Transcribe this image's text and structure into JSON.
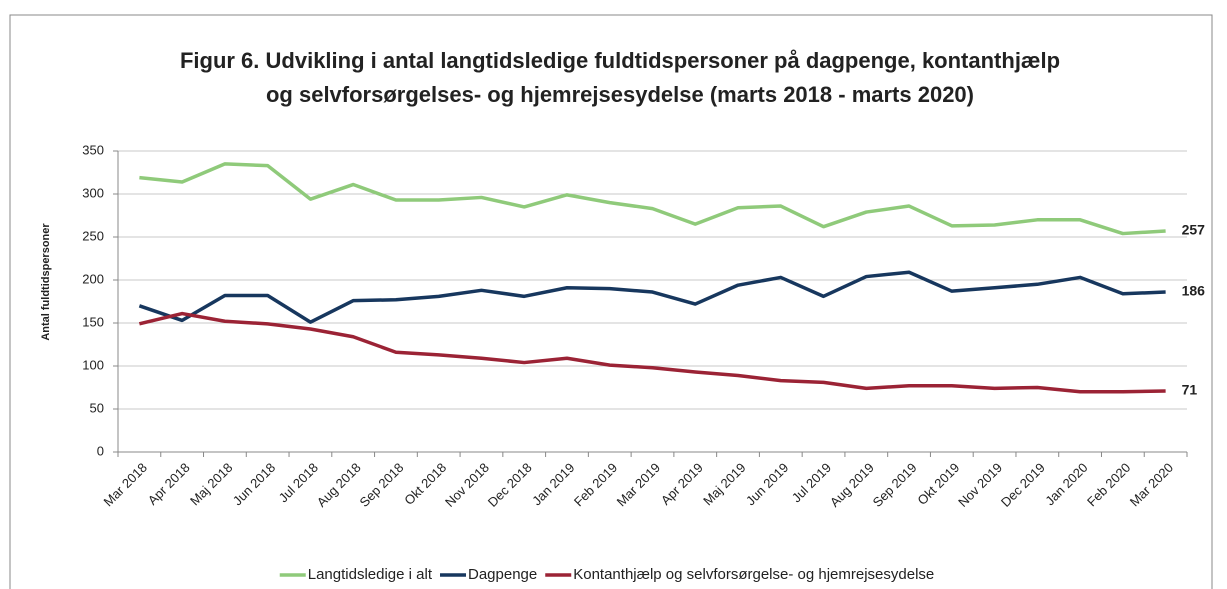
{
  "chart_data": {
    "type": "line",
    "title": [
      "Figur 6. Udvikling i antal langtidsledige fuldtidspersoner på dagpenge,  kontanthjælp",
      "og selvforsørgelses- og hjemrejsesydelse (marts 2018 - marts 2020)"
    ],
    "y_label": "Antal fuldtidspersoner",
    "categories": [
      "Mar 2018",
      "Apr 2018",
      "Maj 2018",
      "Jun 2018",
      "Jul 2018",
      "Aug 2018",
      "Sep 2018",
      "Okt 2018",
      "Nov 2018",
      "Dec 2018",
      "Jan 2019",
      "Feb 2019",
      "Mar 2019",
      "Apr 2019",
      "Maj 2019",
      "Jun 2019",
      "Jul 2019",
      "Aug 2019",
      "Sep 2019",
      "Okt 2019",
      "Nov 2019",
      "Dec 2019",
      "Jan 2020",
      "Feb 2020",
      "Mar 2020"
    ],
    "series": [
      {
        "name": "Langtidsledige i alt",
        "color": "#8fca7a",
        "values": [
          319,
          314,
          335,
          333,
          294,
          311,
          293,
          293,
          296,
          285,
          299,
          290,
          283,
          265,
          284,
          286,
          262,
          279,
          286,
          263,
          264,
          270,
          270,
          254,
          257
        ]
      },
      {
        "name": "Dagpenge",
        "color": "#17375e",
        "values": [
          170,
          153,
          182,
          182,
          151,
          176,
          177,
          181,
          188,
          181,
          191,
          190,
          186,
          172,
          194,
          203,
          181,
          204,
          209,
          187,
          191,
          195,
          203,
          184,
          186
        ]
      },
      {
        "name": "Kontanthjælp og selvforsørgelse- og hjemrejsesydelse",
        "color": "#9b2335",
        "values": [
          149,
          161,
          152,
          149,
          143,
          134,
          116,
          113,
          109,
          104,
          109,
          101,
          98,
          93,
          89,
          83,
          81,
          74,
          77,
          77,
          74,
          75,
          70,
          70,
          71
        ]
      }
    ],
    "ylim": [
      0,
      350
    ],
    "yticks": [
      0,
      50,
      100,
      150,
      200,
      250,
      300,
      350
    ],
    "grid": true
  }
}
